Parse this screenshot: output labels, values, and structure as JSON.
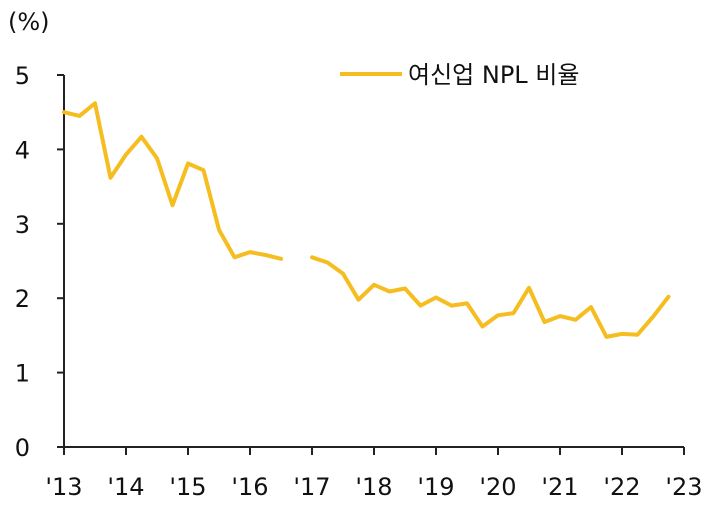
{
  "chart_data": {
    "type": "line",
    "unit_label": "(%)",
    "colors": {
      "series": "#F5BD1F",
      "axis": "#222222"
    },
    "xlim": [
      2013,
      2023
    ],
    "ylim": [
      0,
      5
    ],
    "y_ticks": [
      0,
      1,
      2,
      3,
      4,
      5
    ],
    "x_tick_labels": [
      {
        "x": 2013,
        "label": "'13"
      },
      {
        "x": 2014,
        "label": "'14"
      },
      {
        "x": 2015,
        "label": "'15"
      },
      {
        "x": 2016,
        "label": "'16"
      },
      {
        "x": 2017,
        "label": "'17"
      },
      {
        "x": 2018,
        "label": "'18"
      },
      {
        "x": 2019,
        "label": "'19"
      },
      {
        "x": 2020,
        "label": "'20"
      },
      {
        "x": 2021,
        "label": "'21"
      },
      {
        "x": 2022,
        "label": "'22"
      },
      {
        "x": 2023,
        "label": "'23"
      }
    ],
    "legend": {
      "position": "top-right"
    },
    "series": [
      {
        "name": "여신업 NPL 비율",
        "segments": [
          [
            [
              2013.0,
              4.5
            ],
            [
              2013.25,
              4.45
            ],
            [
              2013.5,
              4.62
            ],
            [
              2013.75,
              3.62
            ],
            [
              2014.0,
              3.93
            ],
            [
              2014.25,
              4.17
            ],
            [
              2014.5,
              3.88
            ],
            [
              2014.75,
              3.25
            ],
            [
              2015.0,
              3.81
            ],
            [
              2015.25,
              3.72
            ],
            [
              2015.5,
              2.92
            ],
            [
              2015.75,
              2.55
            ],
            [
              2016.0,
              2.62
            ],
            [
              2016.25,
              2.58
            ],
            [
              2016.5,
              2.53
            ]
          ],
          [
            [
              2017.0,
              2.55
            ],
            [
              2017.25,
              2.48
            ],
            [
              2017.5,
              2.33
            ],
            [
              2017.75,
              1.98
            ],
            [
              2018.0,
              2.18
            ],
            [
              2018.25,
              2.09
            ],
            [
              2018.5,
              2.13
            ],
            [
              2018.75,
              1.9
            ],
            [
              2019.0,
              2.01
            ],
            [
              2019.25,
              1.9
            ],
            [
              2019.5,
              1.93
            ],
            [
              2019.75,
              1.62
            ],
            [
              2020.0,
              1.77
            ],
            [
              2020.25,
              1.8
            ],
            [
              2020.5,
              2.14
            ],
            [
              2020.75,
              1.68
            ],
            [
              2021.0,
              1.76
            ],
            [
              2021.25,
              1.71
            ],
            [
              2021.5,
              1.88
            ],
            [
              2021.75,
              1.48
            ],
            [
              2022.0,
              1.52
            ],
            [
              2022.25,
              1.51
            ],
            [
              2022.5,
              1.75
            ],
            [
              2022.75,
              2.02
            ]
          ]
        ]
      }
    ]
  }
}
